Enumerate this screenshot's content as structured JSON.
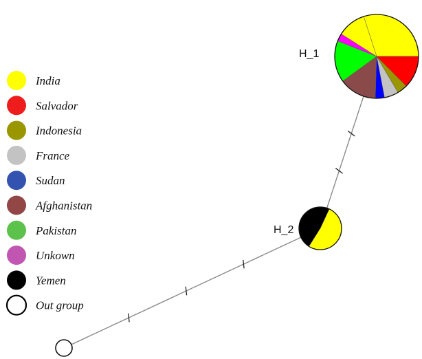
{
  "legend": {
    "items": [
      {
        "label": "India",
        "color": "#ffff00"
      },
      {
        "label": "Salvador",
        "color": "#ee1c1c"
      },
      {
        "label": "Indonesia",
        "color": "#9a9600"
      },
      {
        "label": "France",
        "color": "#c3c3c3"
      },
      {
        "label": "Sudan",
        "color": "#3453b0"
      },
      {
        "label": "Afghanistan",
        "color": "#924646"
      },
      {
        "label": "Pakistan",
        "color": "#5cc24c"
      },
      {
        "label": "Unkown",
        "color": "#c056b2"
      },
      {
        "label": "Yemen",
        "color": "#000000"
      },
      {
        "label": "Out group",
        "color": "#ffffff"
      }
    ]
  },
  "network": {
    "nodes": [
      {
        "id": "H_1",
        "label": "H_1",
        "slices": [
          {
            "group": "India",
            "color": "#ffff00",
            "fraction": 0.3
          },
          {
            "group": "Salvador",
            "color": "#ff0000",
            "fraction": 0.125
          },
          {
            "group": "Indonesia",
            "color": "#9a9600",
            "fraction": 0.04
          },
          {
            "group": "France",
            "color": "#c3c3c3",
            "fraction": 0.055
          },
          {
            "group": "Sudan",
            "color": "#0000ff",
            "fraction": 0.035
          },
          {
            "group": "Afghanistan",
            "color": "#8b4a4a",
            "fraction": 0.145
          },
          {
            "group": "Pakistan",
            "color": "#00ff00",
            "fraction": 0.16
          },
          {
            "group": "Unkown",
            "color": "#ff00ff",
            "fraction": 0.03
          },
          {
            "group": "India",
            "color": "#ffff00",
            "fraction": 0.11
          }
        ]
      },
      {
        "id": "H_2",
        "label": "H_2",
        "slices": [
          {
            "group": "India",
            "color": "#ffff00",
            "fraction": 0.52
          },
          {
            "group": "Yemen",
            "color": "#000000",
            "fraction": 0.48
          }
        ]
      },
      {
        "id": "outgroup",
        "label": "",
        "slices": [
          {
            "group": "Out group",
            "color": "#ffffff",
            "fraction": 1
          }
        ]
      }
    ],
    "edges": [
      {
        "from": "H_1",
        "to": "H_2",
        "mutations": 2
      },
      {
        "from": "H_2",
        "to": "outgroup",
        "mutations": 3
      }
    ]
  }
}
